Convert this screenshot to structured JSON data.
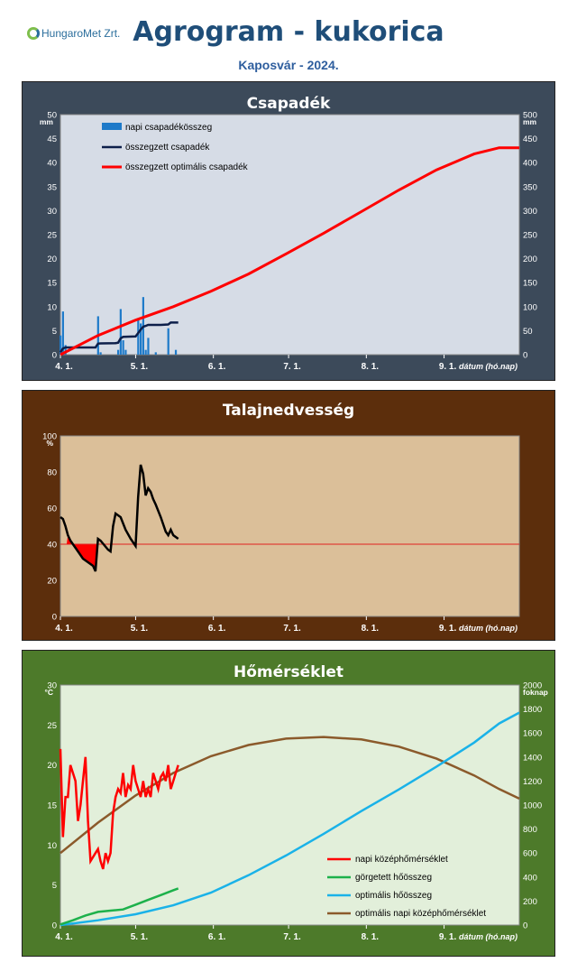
{
  "header": {
    "logo_text": "HungaroMet Zrt.",
    "title": "Agrogram - kukorica",
    "subtitle": "Kaposvár  - 2024."
  },
  "x_axis": {
    "ticks": [
      "4. 1.",
      "5. 1.",
      "6. 1.",
      "7. 1.",
      "8. 1.",
      "9. 1."
    ],
    "label": "dátum (hó.nap)"
  },
  "chart_data": [
    {
      "type": "bar",
      "title": "Csapadék",
      "y_unit_left": "mm",
      "y_unit_right": "mm",
      "ylim_left": [
        0,
        50
      ],
      "ylim_right": [
        0,
        500
      ],
      "yticks_left": [
        0,
        5,
        10,
        15,
        20,
        25,
        30,
        35,
        40,
        45,
        50
      ],
      "yticks_right": [
        0,
        50,
        100,
        150,
        200,
        250,
        300,
        350,
        400,
        450,
        500
      ],
      "xlim_days": [
        0,
        183
      ],
      "legend_position": "top-left",
      "colors": {
        "bar": "#1e7ac9",
        "cum": "#0d1f4a",
        "opt": "#ff0000",
        "plot_bg": "#d6dce6"
      },
      "series": [
        {
          "name": "napi csapadékösszeg",
          "kind": "bar",
          "axis": "left",
          "x": [
            0,
            1,
            2,
            15,
            16,
            23,
            24,
            25,
            26,
            31,
            32,
            33,
            34,
            35,
            38,
            43,
            46
          ],
          "values": [
            4,
            9,
            2,
            8,
            0.5,
            1,
            9.5,
            3,
            1,
            7.5,
            6.5,
            12,
            1,
            3.5,
            0.5,
            5.5,
            1
          ]
        },
        {
          "name": "összegzett csapadék",
          "kind": "line",
          "axis": "right",
          "x": [
            0,
            1,
            2,
            14,
            15,
            16,
            22,
            23,
            24,
            25,
            30,
            31,
            32,
            33,
            34,
            35,
            40,
            43,
            44,
            47
          ],
          "values": [
            5,
            13,
            15,
            15,
            23,
            23.5,
            24,
            25,
            34,
            37,
            38,
            45,
            52,
            58,
            60,
            62,
            62,
            63,
            67,
            67
          ]
        },
        {
          "name": "összegzett optimális csapadék",
          "kind": "line",
          "axis": "right",
          "x": [
            0,
            15,
            30,
            45,
            60,
            75,
            90,
            105,
            120,
            135,
            150,
            165,
            175,
            183
          ],
          "values": [
            0,
            40,
            72,
            100,
            132,
            168,
            210,
            253,
            298,
            343,
            385,
            418,
            431,
            431
          ]
        }
      ]
    },
    {
      "type": "line",
      "title": "Talajnedvesség",
      "y_unit": "%",
      "ylim": [
        0,
        100
      ],
      "yticks": [
        0,
        20,
        40,
        60,
        80,
        100
      ],
      "xlim_days": [
        0,
        183
      ],
      "threshold": 40,
      "colors": {
        "line": "#000000",
        "threshold": "#e02020",
        "deficit": "#ff0000",
        "plot_bg": "#dbbf99"
      },
      "series": [
        {
          "name": "talajnedvesség",
          "x": [
            0,
            1,
            2,
            3,
            4,
            5,
            7,
            9,
            11,
            13,
            14,
            15,
            16,
            19,
            20,
            21,
            22,
            24,
            26,
            28,
            30,
            31,
            32,
            33,
            34,
            35,
            36,
            37,
            38,
            40,
            42,
            43,
            44,
            45,
            47
          ],
          "values": [
            55,
            54,
            50,
            45,
            42,
            40,
            36,
            32,
            30,
            28,
            25,
            43,
            42,
            37,
            36,
            50,
            57,
            55,
            48,
            43,
            39,
            66,
            84,
            79,
            67,
            71,
            69,
            65,
            62,
            55,
            47,
            45,
            48,
            45,
            43
          ]
        }
      ]
    },
    {
      "type": "line",
      "title": "Hőmérséklet",
      "y_unit_left": "°C",
      "y_unit_right": "foknap",
      "ylim_left": [
        0,
        30
      ],
      "ylim_right": [
        0,
        2000
      ],
      "yticks_left": [
        0,
        5,
        10,
        15,
        20,
        25,
        30
      ],
      "yticks_right": [
        0,
        200,
        400,
        600,
        800,
        1000,
        1200,
        1400,
        1600,
        1800,
        2000
      ],
      "xlim_days": [
        0,
        183
      ],
      "legend_position": "bottom-right",
      "colors": {
        "daily": "#ff0000",
        "cum": "#1db14b",
        "optcum": "#1ab2e8",
        "optdaily": "#8b5a2b",
        "plot_bg": "#e2efda"
      },
      "series": [
        {
          "name": "napi középhőmérséklet",
          "axis": "left",
          "x": [
            0,
            1,
            2,
            3,
            4,
            5,
            6,
            7,
            8,
            9,
            10,
            11,
            12,
            13,
            14,
            15,
            16,
            17,
            18,
            19,
            20,
            21,
            22,
            23,
            24,
            25,
            26,
            27,
            28,
            29,
            30,
            31,
            32,
            33,
            34,
            35,
            36,
            37,
            38,
            39,
            40,
            41,
            42,
            43,
            44,
            45,
            46,
            47
          ],
          "values": [
            22,
            11,
            16,
            16,
            20,
            19,
            18,
            13,
            15,
            18,
            21,
            13,
            8,
            8.5,
            9,
            9.5,
            8,
            7,
            9,
            8,
            9,
            14,
            16,
            17,
            16.5,
            19,
            16,
            17.5,
            17,
            20,
            18,
            17,
            16,
            18,
            16,
            17,
            16,
            19,
            18,
            17,
            18.5,
            19,
            18,
            20,
            17,
            18,
            19,
            20
          ]
        },
        {
          "name": "görgetett hőösszeg",
          "axis": "right",
          "x": [
            0,
            5,
            10,
            15,
            20,
            25,
            30,
            35,
            40,
            45,
            47
          ],
          "values": [
            5,
            40,
            80,
            110,
            120,
            130,
            170,
            210,
            250,
            290,
            305
          ]
        },
        {
          "name": "optimális hőösszeg",
          "axis": "right",
          "x": [
            0,
            15,
            30,
            45,
            60,
            75,
            90,
            105,
            120,
            135,
            150,
            165,
            175,
            183
          ],
          "values": [
            0,
            40,
            90,
            165,
            270,
            415,
            580,
            760,
            950,
            1130,
            1320,
            1520,
            1680,
            1770
          ]
        },
        {
          "name": "optimális napi középhőmérséklet",
          "axis": "left",
          "x": [
            0,
            15,
            30,
            45,
            60,
            75,
            90,
            105,
            120,
            135,
            150,
            165,
            175,
            183
          ],
          "values": [
            9,
            12.8,
            16.2,
            19,
            21.1,
            22.5,
            23.3,
            23.5,
            23.2,
            22.3,
            20.8,
            18.7,
            17,
            15.8
          ]
        }
      ]
    }
  ]
}
